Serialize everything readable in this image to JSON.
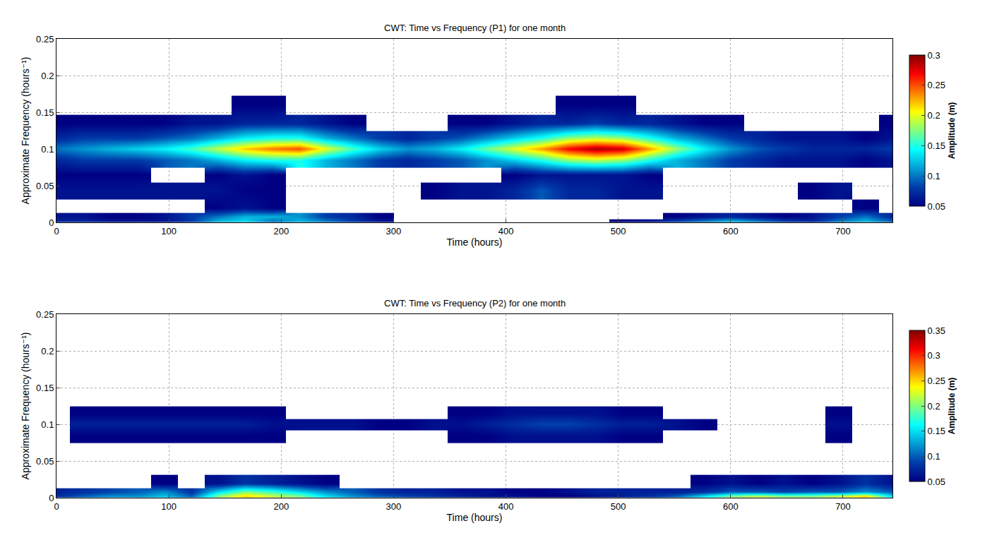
{
  "chart_data": [
    {
      "type": "heatmap",
      "title": "CWT: Time vs Frequency (P1) for one month",
      "x_label": "Time (hours)",
      "y_label": "Approximate Frequency (hours⁻¹)",
      "colorbar_label": "Amplitude (m)",
      "x": [
        0,
        24,
        48,
        72,
        96,
        120,
        144,
        168,
        192,
        216,
        240,
        264,
        288,
        312,
        336,
        360,
        384,
        408,
        432,
        456,
        480,
        504,
        528,
        552,
        576,
        600,
        624,
        648,
        672,
        696,
        720,
        744
      ],
      "y": [
        0.002,
        0.008,
        0.02,
        0.045,
        0.065,
        0.085,
        0.1,
        0.115,
        0.135,
        0.16
      ],
      "z": [
        [
          0.07,
          0.07,
          0.06,
          0.06,
          0.06,
          0.08,
          0.12,
          0.13,
          0.1,
          0.12,
          0.1,
          0.08,
          0.06,
          null,
          null,
          null,
          null,
          null,
          null,
          null,
          null,
          0.05,
          0.06,
          0.08,
          0.1,
          0.12,
          0.1,
          0.08,
          0.07,
          0.1,
          0.12,
          0.09
        ],
        [
          0.06,
          0.06,
          0.05,
          0.05,
          0.06,
          0.08,
          0.1,
          0.12,
          0.12,
          0.11,
          0.08,
          0.07,
          0.05,
          null,
          null,
          null,
          null,
          null,
          null,
          null,
          null,
          null,
          null,
          0.05,
          0.06,
          0.07,
          0.06,
          0.05,
          0.06,
          0.08,
          0.1,
          0.07
        ],
        [
          null,
          null,
          null,
          null,
          null,
          null,
          0.05,
          0.06,
          0.05,
          null,
          null,
          null,
          null,
          null,
          null,
          null,
          null,
          null,
          null,
          null,
          null,
          null,
          null,
          null,
          null,
          null,
          null,
          null,
          null,
          null,
          0.05,
          null
        ],
        [
          0.06,
          0.06,
          0.06,
          0.06,
          0.06,
          0.06,
          0.06,
          0.05,
          0.05,
          null,
          null,
          null,
          null,
          null,
          0.05,
          0.06,
          0.06,
          0.07,
          0.09,
          0.07,
          0.07,
          0.06,
          0.06,
          null,
          null,
          null,
          null,
          null,
          0.05,
          0.06,
          null,
          null
        ],
        [
          0.05,
          0.05,
          0.05,
          0.05,
          null,
          null,
          0.05,
          0.06,
          0.05,
          null,
          null,
          null,
          null,
          null,
          null,
          null,
          null,
          0.05,
          0.06,
          0.06,
          0.06,
          0.06,
          0.05,
          null,
          null,
          null,
          null,
          null,
          null,
          null,
          null,
          null
        ],
        [
          0.07,
          0.08,
          0.08,
          0.08,
          0.09,
          0.1,
          0.12,
          0.14,
          0.15,
          0.15,
          0.12,
          0.1,
          0.08,
          0.07,
          0.08,
          0.09,
          0.11,
          0.13,
          0.15,
          0.18,
          0.19,
          0.18,
          0.15,
          0.12,
          0.1,
          0.08,
          0.07,
          0.06,
          0.06,
          0.06,
          0.05,
          0.06
        ],
        [
          0.1,
          0.11,
          0.12,
          0.13,
          0.14,
          0.16,
          0.19,
          0.22,
          0.24,
          0.25,
          0.2,
          0.16,
          0.13,
          0.11,
          0.12,
          0.14,
          0.17,
          0.2,
          0.23,
          0.27,
          0.29,
          0.28,
          0.23,
          0.18,
          0.14,
          0.11,
          0.09,
          0.08,
          0.07,
          0.07,
          0.07,
          0.08
        ],
        [
          0.07,
          0.08,
          0.08,
          0.08,
          0.09,
          0.1,
          0.12,
          0.14,
          0.15,
          0.15,
          0.12,
          0.1,
          0.08,
          0.07,
          0.08,
          0.09,
          0.11,
          0.13,
          0.15,
          0.18,
          0.19,
          0.18,
          0.15,
          0.12,
          0.1,
          0.08,
          0.07,
          0.06,
          0.06,
          0.06,
          0.05,
          0.06
        ],
        [
          0.05,
          0.05,
          0.05,
          0.05,
          0.05,
          0.06,
          0.06,
          0.07,
          0.07,
          0.07,
          0.06,
          0.05,
          null,
          null,
          null,
          0.05,
          0.05,
          0.06,
          0.07,
          0.07,
          0.08,
          0.07,
          0.07,
          0.06,
          0.05,
          0.05,
          null,
          null,
          null,
          null,
          null,
          0.05
        ],
        [
          null,
          null,
          null,
          null,
          null,
          null,
          null,
          0.05,
          0.05,
          null,
          null,
          null,
          null,
          null,
          null,
          null,
          null,
          null,
          null,
          0.05,
          0.05,
          0.05,
          null,
          null,
          null,
          null,
          null,
          null,
          null,
          null,
          null,
          null
        ]
      ],
      "xlim": [
        0,
        744
      ],
      "xticks": [
        0,
        100,
        200,
        300,
        400,
        500,
        600,
        700
      ],
      "ylim": [
        0,
        0.25
      ],
      "yticks": [
        0,
        0.05,
        0.1,
        0.15,
        0.2,
        0.25
      ],
      "zlim": [
        0.05,
        0.3
      ],
      "zticks": [
        0.05,
        0.1,
        0.15,
        0.2,
        0.25,
        0.3
      ],
      "grid": true
    },
    {
      "type": "heatmap",
      "title": "CWT: Time vs Frequency (P2) for one month",
      "x_label": "Time (hours)",
      "y_label": "Approximate Frequency (hours⁻¹)",
      "colorbar_label": "Amplitude (m)",
      "x": [
        0,
        24,
        48,
        72,
        96,
        120,
        144,
        168,
        192,
        216,
        240,
        264,
        288,
        312,
        336,
        360,
        384,
        408,
        432,
        456,
        480,
        504,
        528,
        552,
        576,
        600,
        624,
        648,
        672,
        696,
        720,
        744
      ],
      "y": [
        0.002,
        0.008,
        0.02,
        0.045,
        0.065,
        0.085,
        0.1,
        0.115,
        0.135,
        0.16
      ],
      "z": [
        [
          0.08,
          0.1,
          0.12,
          0.12,
          0.14,
          0.1,
          0.2,
          0.25,
          0.22,
          0.2,
          0.15,
          0.12,
          0.1,
          0.09,
          0.08,
          0.07,
          0.06,
          0.06,
          0.05,
          0.05,
          0.06,
          0.07,
          0.08,
          0.1,
          0.15,
          0.2,
          0.22,
          0.2,
          0.2,
          0.22,
          0.25,
          0.15
        ],
        [
          0.07,
          0.08,
          0.09,
          0.1,
          0.12,
          0.08,
          0.15,
          0.2,
          0.18,
          0.15,
          0.12,
          0.1,
          0.08,
          0.07,
          0.07,
          0.06,
          0.06,
          0.05,
          0.05,
          0.06,
          0.07,
          0.07,
          0.07,
          0.07,
          0.08,
          0.1,
          0.1,
          0.09,
          0.1,
          0.1,
          0.12,
          0.1
        ],
        [
          null,
          null,
          null,
          null,
          0.05,
          null,
          0.06,
          0.08,
          0.07,
          0.06,
          0.05,
          null,
          null,
          null,
          null,
          null,
          null,
          null,
          null,
          null,
          null,
          null,
          null,
          null,
          0.05,
          0.06,
          0.05,
          0.06,
          0.05,
          0.06,
          0.08,
          0.06
        ],
        [
          null,
          null,
          null,
          null,
          null,
          null,
          null,
          null,
          null,
          null,
          null,
          null,
          null,
          null,
          null,
          null,
          null,
          null,
          null,
          null,
          null,
          null,
          null,
          null,
          null,
          null,
          null,
          null,
          null,
          null,
          null,
          null
        ],
        [
          null,
          null,
          null,
          null,
          null,
          null,
          null,
          null,
          null,
          null,
          null,
          null,
          null,
          null,
          null,
          null,
          null,
          null,
          null,
          null,
          null,
          null,
          null,
          null,
          null,
          null,
          null,
          null,
          null,
          null,
          null,
          null
        ],
        [
          null,
          0.05,
          0.05,
          0.05,
          0.05,
          0.05,
          0.05,
          0.05,
          0.05,
          null,
          null,
          null,
          null,
          null,
          null,
          0.05,
          0.05,
          0.06,
          0.06,
          0.06,
          0.06,
          0.05,
          0.05,
          null,
          null,
          null,
          null,
          null,
          null,
          0.05,
          null,
          null
        ],
        [
          null,
          0.07,
          0.07,
          0.07,
          0.07,
          0.07,
          0.07,
          0.07,
          0.06,
          0.06,
          0.06,
          0.06,
          0.05,
          0.05,
          0.06,
          0.06,
          0.07,
          0.08,
          0.09,
          0.09,
          0.08,
          0.07,
          0.07,
          0.06,
          0.05,
          null,
          null,
          null,
          null,
          0.06,
          null,
          null
        ],
        [
          null,
          0.05,
          0.05,
          0.05,
          0.05,
          0.05,
          0.05,
          0.05,
          0.05,
          null,
          null,
          null,
          null,
          null,
          null,
          0.05,
          0.05,
          0.06,
          0.06,
          0.06,
          0.06,
          0.05,
          0.05,
          null,
          null,
          null,
          null,
          null,
          null,
          0.05,
          null,
          null
        ],
        [
          null,
          null,
          null,
          null,
          null,
          null,
          null,
          null,
          null,
          null,
          null,
          null,
          null,
          null,
          null,
          null,
          null,
          null,
          null,
          null,
          null,
          null,
          null,
          null,
          null,
          null,
          null,
          null,
          null,
          null,
          null,
          null
        ],
        [
          null,
          null,
          null,
          null,
          null,
          null,
          null,
          null,
          null,
          null,
          null,
          null,
          null,
          null,
          null,
          null,
          null,
          null,
          null,
          null,
          null,
          null,
          null,
          null,
          null,
          null,
          null,
          null,
          null,
          null,
          null,
          null
        ]
      ],
      "xlim": [
        0,
        744
      ],
      "xticks": [
        0,
        100,
        200,
        300,
        400,
        500,
        600,
        700
      ],
      "ylim": [
        0,
        0.25
      ],
      "yticks": [
        0,
        0.05,
        0.1,
        0.15,
        0.2,
        0.25
      ],
      "zlim": [
        0.05,
        0.35
      ],
      "zticks": [
        0.05,
        0.1,
        0.15,
        0.2,
        0.25,
        0.3,
        0.35
      ],
      "grid": true
    }
  ]
}
